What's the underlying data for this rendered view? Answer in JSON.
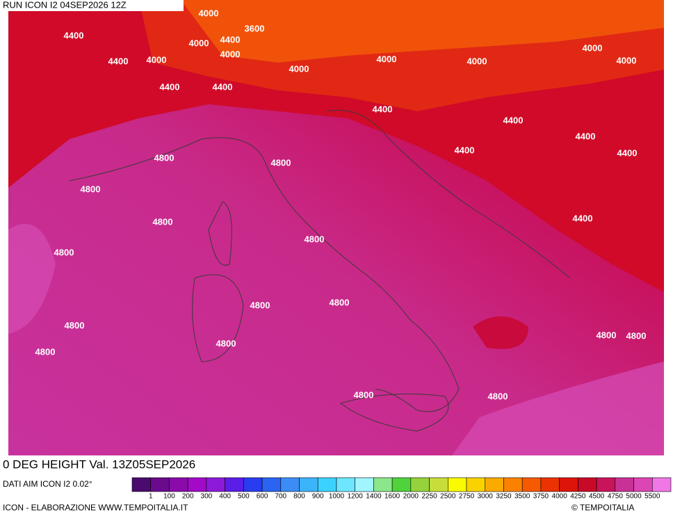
{
  "header": {
    "run": "RUN ICON I2 04SEP2026 12Z"
  },
  "footer": {
    "title": "0 DEG HEIGHT Val. 13Z05SEP2026",
    "source": "DATI AIM ICON I2 0.02°",
    "credit": "ICON - ELABORAZIONE WWW.TEMPOITALIA.IT",
    "copyright": "© TEMPOITALIA"
  },
  "contour_labels": [
    "4000",
    "4400",
    "3600",
    "4000",
    "4400",
    "4000",
    "4400",
    "4000",
    "4400",
    "4400",
    "4000",
    "4000",
    "4000",
    "4000",
    "4000",
    "4400",
    "4400",
    "4400",
    "4400",
    "4400",
    "4800",
    "4800",
    "4800",
    "4800",
    "4800",
    "4400",
    "4800",
    "4800",
    "4800",
    "4800",
    "4800",
    "4800",
    "4800",
    "4800",
    "4800",
    "4800"
  ],
  "colorbar": {
    "colors": [
      "#4b0a6e",
      "#6a0a8c",
      "#8a0aaa",
      "#a30ac8",
      "#8c1ad8",
      "#5a1ee6",
      "#2a3cf0",
      "#2a64f0",
      "#3c8cf5",
      "#3cb4fa",
      "#3cd2ff",
      "#6ee6ff",
      "#a0f5ff",
      "#8ce68c",
      "#50d23c",
      "#96d23c",
      "#c8dc3c",
      "#fafa00",
      "#fad200",
      "#faaa00",
      "#fa8200",
      "#f55a00",
      "#eb3200",
      "#dc140a",
      "#c80a28",
      "#c8145a",
      "#c83296",
      "#dc46b4",
      "#f078e6"
    ],
    "labels": [
      "1",
      "100",
      "200",
      "300",
      "400",
      "500",
      "600",
      "700",
      "800",
      "900",
      "1000",
      "1200",
      "1400",
      "1600",
      "2000",
      "2250",
      "2500",
      "2750",
      "3000",
      "3250",
      "3500",
      "3750",
      "4000",
      "4250",
      "4500",
      "4750",
      "5000",
      "5500"
    ]
  }
}
